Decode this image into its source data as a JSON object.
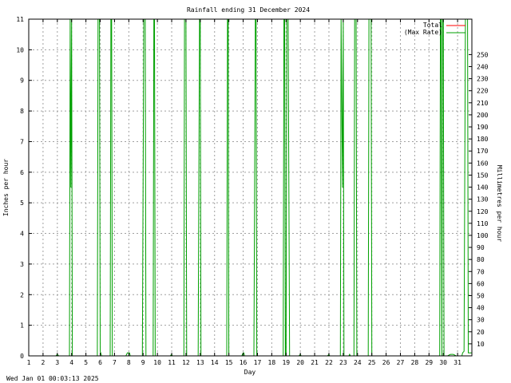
{
  "chart_data": {
    "type": "line",
    "title": "Rainfall ending 31 December 2024",
    "xlabel": "Day",
    "ylabel_left": "Inches per hour",
    "ylabel_right": "Millimetres per hour",
    "xlim": [
      1,
      32
    ],
    "ylim_left": [
      0,
      11
    ],
    "ylim_right_mm": [
      0,
      279.4
    ],
    "x_ticks": [
      "1",
      "2",
      "3",
      "4",
      "5",
      "6",
      "7",
      "8",
      "9",
      "10",
      "11",
      "12",
      "13",
      "14",
      "15",
      "16",
      "17",
      "18",
      "19",
      "20",
      "21",
      "22",
      "23",
      "24",
      "25",
      "26",
      "27",
      "28",
      "29",
      "30",
      "31"
    ],
    "y_ticks_left": [
      "0",
      "1",
      "2",
      "3",
      "4",
      "5",
      "6",
      "7",
      "8",
      "9",
      "10",
      "11"
    ],
    "y_ticks_right": [
      "10",
      "20",
      "30",
      "40",
      "50",
      "60",
      "70",
      "80",
      "90",
      "100",
      "110",
      "120",
      "130",
      "140",
      "150",
      "160",
      "170",
      "180",
      "190",
      "200",
      "210",
      "220",
      "230",
      "240",
      "250"
    ],
    "grid": true,
    "legend_position": "top-right",
    "series": [
      {
        "name": "Total",
        "color": "#ff0000",
        "points": [
          [
            1,
            0
          ],
          [
            32,
            0
          ]
        ]
      },
      {
        "name": "Max Rate",
        "color": "#00a000",
        "points": [
          [
            1,
            0
          ],
          [
            2.9,
            0
          ],
          [
            3.0,
            0.05
          ],
          [
            3.1,
            0
          ],
          [
            3.85,
            0
          ],
          [
            3.9,
            11
          ],
          [
            3.95,
            5.5
          ],
          [
            4.0,
            11
          ],
          [
            4.05,
            0
          ],
          [
            5.8,
            0
          ],
          [
            5.85,
            11
          ],
          [
            5.95,
            11
          ],
          [
            6.0,
            0.15
          ],
          [
            6.1,
            0
          ],
          [
            6.7,
            0
          ],
          [
            6.75,
            11
          ],
          [
            6.8,
            11
          ],
          [
            6.85,
            0
          ],
          [
            7.8,
            0
          ],
          [
            7.9,
            0.1
          ],
          [
            8.05,
            0.1
          ],
          [
            8.1,
            0
          ],
          [
            8.95,
            0
          ],
          [
            9.0,
            5.5
          ],
          [
            9.05,
            11
          ],
          [
            9.15,
            11
          ],
          [
            9.2,
            0
          ],
          [
            9.7,
            0
          ],
          [
            9.75,
            11
          ],
          [
            9.8,
            11
          ],
          [
            9.85,
            0
          ],
          [
            10.9,
            0
          ],
          [
            11.0,
            0.05
          ],
          [
            11.05,
            0
          ],
          [
            11.85,
            0
          ],
          [
            11.9,
            11
          ],
          [
            12.0,
            11
          ],
          [
            12.05,
            0
          ],
          [
            12.85,
            0
          ],
          [
            12.9,
            5.5
          ],
          [
            12.95,
            11
          ],
          [
            13.0,
            11
          ],
          [
            13.05,
            0
          ],
          [
            14.85,
            0
          ],
          [
            14.9,
            11
          ],
          [
            14.95,
            11
          ],
          [
            15.0,
            0
          ],
          [
            15.9,
            0
          ],
          [
            16.0,
            0.1
          ],
          [
            16.05,
            0.1
          ],
          [
            16.1,
            0
          ],
          [
            16.75,
            0
          ],
          [
            16.8,
            5.5
          ],
          [
            16.85,
            11
          ],
          [
            16.9,
            11
          ],
          [
            16.95,
            0
          ],
          [
            18.8,
            0
          ],
          [
            18.85,
            11
          ],
          [
            18.9,
            11
          ],
          [
            18.95,
            0
          ],
          [
            19.0,
            0
          ],
          [
            19.05,
            11
          ],
          [
            19.15,
            11
          ],
          [
            19.2,
            5.5
          ],
          [
            19.25,
            0
          ],
          [
            19.9,
            0
          ],
          [
            20.0,
            0.05
          ],
          [
            20.05,
            0
          ],
          [
            21.9,
            0
          ],
          [
            22.0,
            0.05
          ],
          [
            22.05,
            0
          ],
          [
            22.8,
            0
          ],
          [
            22.85,
            11
          ],
          [
            22.95,
            5.5
          ],
          [
            23.0,
            11
          ],
          [
            23.05,
            0
          ],
          [
            23.4,
            0
          ],
          [
            23.45,
            0.05
          ],
          [
            23.5,
            0
          ],
          [
            23.75,
            0
          ],
          [
            23.8,
            11
          ],
          [
            23.9,
            11
          ],
          [
            23.95,
            0
          ],
          [
            24.75,
            0
          ],
          [
            24.8,
            11
          ],
          [
            24.95,
            11
          ],
          [
            25.0,
            0
          ],
          [
            29.75,
            0
          ],
          [
            29.8,
            11
          ],
          [
            29.85,
            11
          ],
          [
            29.9,
            0
          ],
          [
            29.95,
            11
          ],
          [
            30.0,
            11
          ],
          [
            30.05,
            0
          ],
          [
            30.3,
            0
          ],
          [
            30.5,
            0.05
          ],
          [
            30.7,
            0.05
          ],
          [
            30.9,
            0
          ],
          [
            31.3,
            0
          ],
          [
            31.35,
            0.1
          ],
          [
            31.45,
            0.15
          ],
          [
            31.55,
            11
          ],
          [
            31.7,
            11
          ],
          [
            31.75,
            0.1
          ],
          [
            32,
            0.1
          ]
        ]
      }
    ]
  },
  "footer": {
    "timestamp": "Wed Jan 01 00:03:13 2025"
  }
}
